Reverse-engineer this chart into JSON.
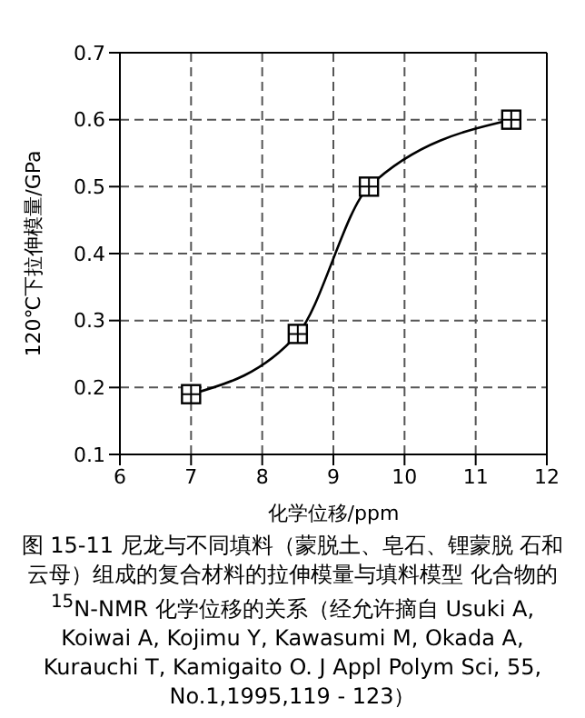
{
  "chart_data": {
    "type": "line",
    "xlabel": "化学位移/ppm",
    "ylabel": "120℃下拉伸模量/GPa",
    "x": [
      7,
      8.5,
      9.5,
      11.5
    ],
    "series": [
      {
        "color": "#000000",
        "values": [
          0.19,
          0.28,
          0.5,
          0.6
        ]
      }
    ],
    "xlim": [
      6,
      12
    ],
    "xticks": [
      6,
      7,
      8,
      9,
      10,
      11,
      12
    ],
    "ylim": [
      0.1,
      0.7
    ],
    "yticks": [
      0.1,
      0.2,
      0.3,
      0.4,
      0.5,
      0.6,
      0.7
    ],
    "grid": true,
    "marker": "square",
    "line_style": "solid",
    "annotations": [
      "图 15-11 尼龙与不同填料（蒙脱土、皂石、锂蒙脱 石和云母）组成的复合材料的拉伸模量与填料模型 化合物的 $^{15}$N-NMR 化学位移的关系（经允许摘自 Usuki A, Koiwai A, Kojimu Y, Kawasumi M, Okada A, Kurauchi T, Kamigaito O. J Appl Polym Sci, 55, No.1,1995,119 - 123）"
    ]
  }
}
